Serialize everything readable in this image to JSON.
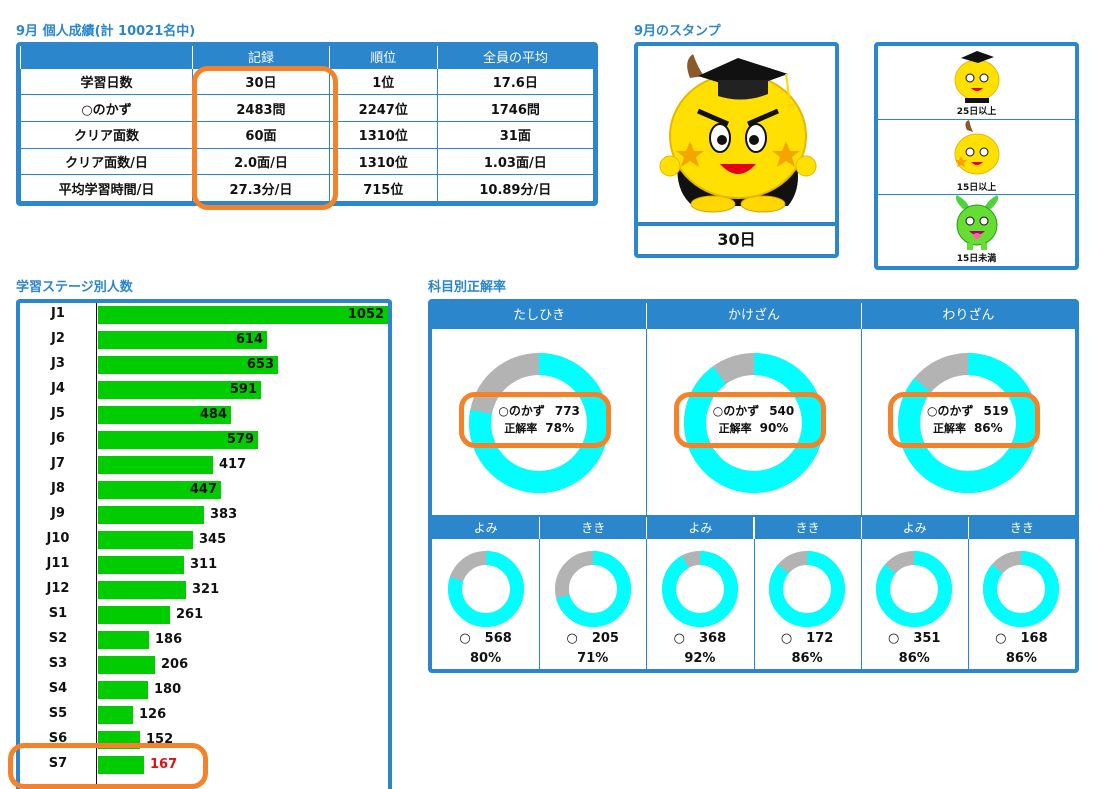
{
  "stats": {
    "title": "9月 個人成績(計 10021名中)",
    "headers": [
      "",
      "記録",
      "順位",
      "全員の平均"
    ],
    "rows": [
      {
        "label": "学習日数",
        "record": "30日",
        "rank": "1位",
        "average": "17.6日"
      },
      {
        "label": "○のかず",
        "record": "2483問",
        "rank": "2247位",
        "average": "1746問"
      },
      {
        "label": "クリア面数",
        "record": "60面",
        "rank": "1310位",
        "average": "31面"
      },
      {
        "label": "クリア面数/日",
        "record": "2.0面/日",
        "rank": "1310位",
        "average": "1.03面/日"
      },
      {
        "label": "平均学習時間/日",
        "record": "27.3分/日",
        "rank": "715位",
        "average": "10.89分/日"
      }
    ]
  },
  "stamp": {
    "title": "9月のスタンプ",
    "current_days": "30日",
    "legend": [
      "25日以上",
      "15日以上",
      "15日未満"
    ]
  },
  "stages": {
    "title": "学習ステージ別人数",
    "highlight_color": "#dd1111"
  },
  "chart_data": {
    "type": "bar",
    "orientation": "horizontal",
    "categories": [
      "J1",
      "J2",
      "J3",
      "J4",
      "J5",
      "J6",
      "J7",
      "J8",
      "J9",
      "J10",
      "J11",
      "J12",
      "S1",
      "S2",
      "S3",
      "S4",
      "S5",
      "S6",
      "S7"
    ],
    "values": [
      1052,
      614,
      653,
      591,
      484,
      579,
      417,
      447,
      383,
      345,
      311,
      321,
      261,
      186,
      206,
      180,
      126,
      152,
      167
    ],
    "highlight_category": "S7",
    "bar_color": "#00cc00"
  },
  "subjects": {
    "title": "科目別正解率",
    "main": [
      {
        "name": "たしひき",
        "count_label": "○のかず",
        "count": "773",
        "rate_label": "正解率",
        "rate": "78%",
        "rate_value": 78
      },
      {
        "name": "かけざん",
        "count_label": "○のかず",
        "count": "540",
        "rate_label": "正解率",
        "rate": "90%",
        "rate_value": 90
      },
      {
        "name": "わりざん",
        "count_label": "○のかず",
        "count": "519",
        "rate_label": "正解率",
        "rate": "86%",
        "rate_value": 86
      }
    ],
    "sub": [
      {
        "name": "よみ",
        "mark": "○",
        "count": "568",
        "rate": "80%",
        "rate_value": 80
      },
      {
        "name": "きき",
        "mark": "○",
        "count": "205",
        "rate": "71%",
        "rate_value": 71
      },
      {
        "name": "よみ",
        "mark": "○",
        "count": "368",
        "rate": "92%",
        "rate_value": 92
      },
      {
        "name": "きき",
        "mark": "○",
        "count": "172",
        "rate": "86%",
        "rate_value": 86
      },
      {
        "name": "よみ",
        "mark": "○",
        "count": "351",
        "rate": "86%",
        "rate_value": 86
      },
      {
        "name": "きき",
        "mark": "○",
        "count": "168",
        "rate": "86%",
        "rate_value": 86
      }
    ],
    "correct_color": "#00ffff",
    "incorrect_color": "#b3b3b3"
  },
  "colors": {
    "accent": "#2b86cc",
    "annotation": "#f5822a"
  }
}
